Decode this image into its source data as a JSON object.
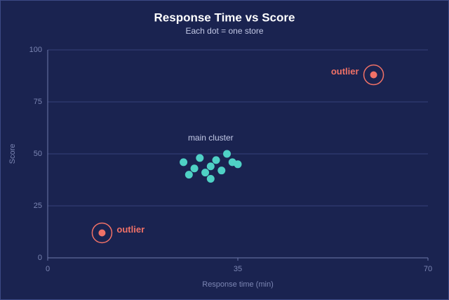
{
  "chart_data": {
    "type": "scatter",
    "title": "Response Time vs Score",
    "subtitle": "Each dot = one store",
    "x_label": "Response time (min)",
    "y_label": "Score",
    "xlim": [
      0,
      70
    ],
    "xticks": [
      0,
      35,
      70
    ],
    "ylim": [
      0,
      100
    ],
    "yticks": [
      0,
      25,
      50,
      75,
      100
    ],
    "grid": true,
    "series": [
      {
        "color": "#4fd1c5",
        "label": "main cluster",
        "x": [
          25,
          26,
          27,
          28,
          29,
          30,
          30,
          31,
          32,
          33,
          34,
          35
        ],
        "values": [
          46,
          40,
          43,
          48,
          41,
          44,
          38,
          47,
          42,
          50,
          46,
          45
        ]
      },
      {
        "color": "#f07167",
        "point_labels": [
          "outlier",
          "outlier"
        ],
        "x": [
          10,
          60
        ],
        "values": [
          12,
          88
        ]
      }
    ]
  }
}
